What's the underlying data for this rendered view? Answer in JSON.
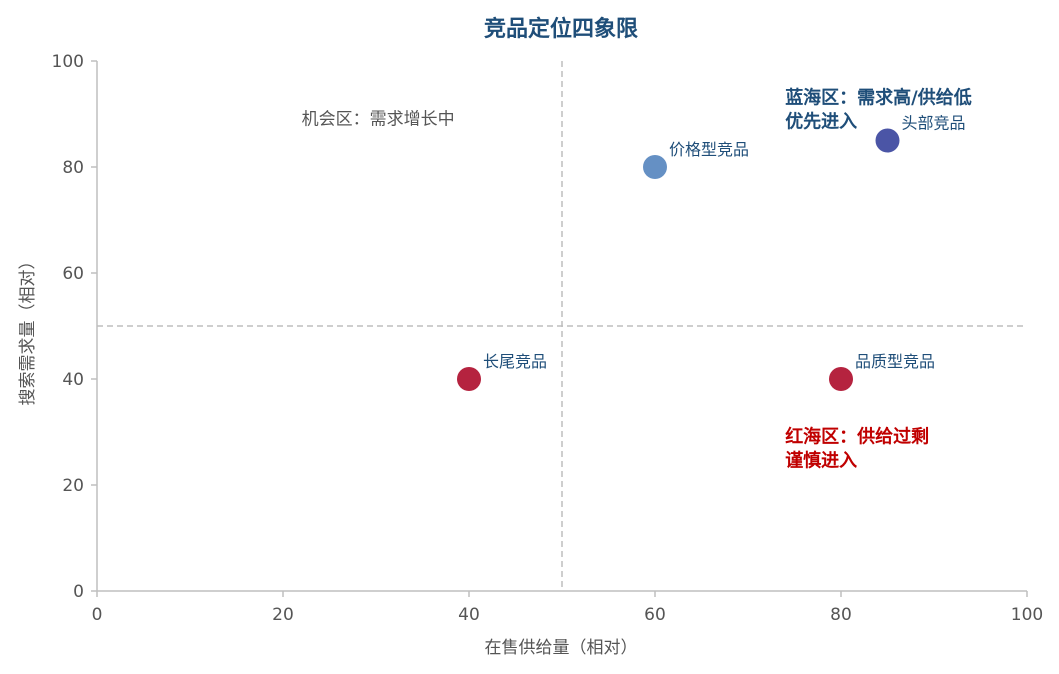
{
  "chart_data": {
    "type": "scatter",
    "title": "竞品定位四象限",
    "xlabel": "在售供给量（相对）",
    "ylabel": "搜索需求量（相对）",
    "xlim": [
      0,
      100
    ],
    "ylim": [
      0,
      100
    ],
    "xticks": [
      0,
      20,
      40,
      60,
      80,
      100
    ],
    "yticks": [
      0,
      20,
      40,
      60,
      80,
      100
    ],
    "grid": false,
    "reference_lines": {
      "x": 50,
      "y": 50
    },
    "points": [
      {
        "label": "头部竞品",
        "x": 85,
        "y": 85,
        "color": "#4b55a6"
      },
      {
        "label": "价格型竞品",
        "x": 60,
        "y": 80,
        "color": "#6590c4"
      },
      {
        "label": "长尾竞品",
        "x": 40,
        "y": 40,
        "color": "#b5233f"
      },
      {
        "label": "品质型竞品",
        "x": 80,
        "y": 40,
        "color": "#b5233f"
      }
    ],
    "annotations": [
      {
        "lines": [
          "机会区：需求增长中"
        ],
        "x": 22,
        "y": 88,
        "color": "#555555",
        "bold": false
      },
      {
        "lines": [
          "蓝海区：需求高/供给低",
          "优先进入"
        ],
        "x": 74,
        "y": 92,
        "color": "#1f4e79",
        "bold": true
      },
      {
        "lines": [
          "红海区：供给过剩",
          "谨慎进入"
        ],
        "x": 74,
        "y": 28,
        "color": "#c00000",
        "bold": true
      }
    ]
  }
}
